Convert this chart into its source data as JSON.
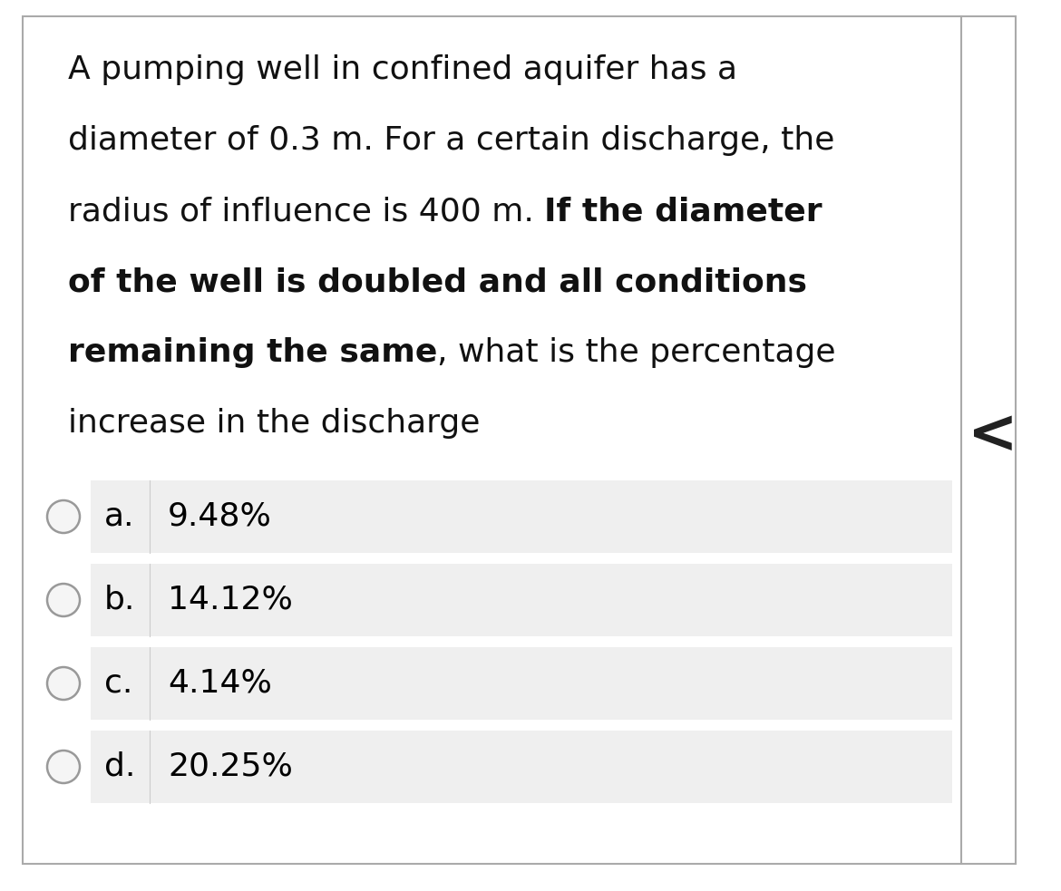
{
  "background_color": "#ffffff",
  "outer_border_color": "#aaaaaa",
  "card_bg": "#ffffff",
  "options": [
    {
      "label": "a.",
      "text": "9.48%"
    },
    {
      "label": "b.",
      "text": "14.12%"
    },
    {
      "label": "c.",
      "text": "4.14%"
    },
    {
      "label": "d.",
      "text": "20.25%"
    }
  ],
  "option_bg_color": "#efefef",
  "option_text_color": "#000000",
  "option_label_color": "#000000",
  "circle_edge_color": "#999999",
  "circle_face_color": "#f5f5f5",
  "font_size_question": 26,
  "font_size_options": 26,
  "chevron_color": "#222222",
  "text_color": "#111111"
}
